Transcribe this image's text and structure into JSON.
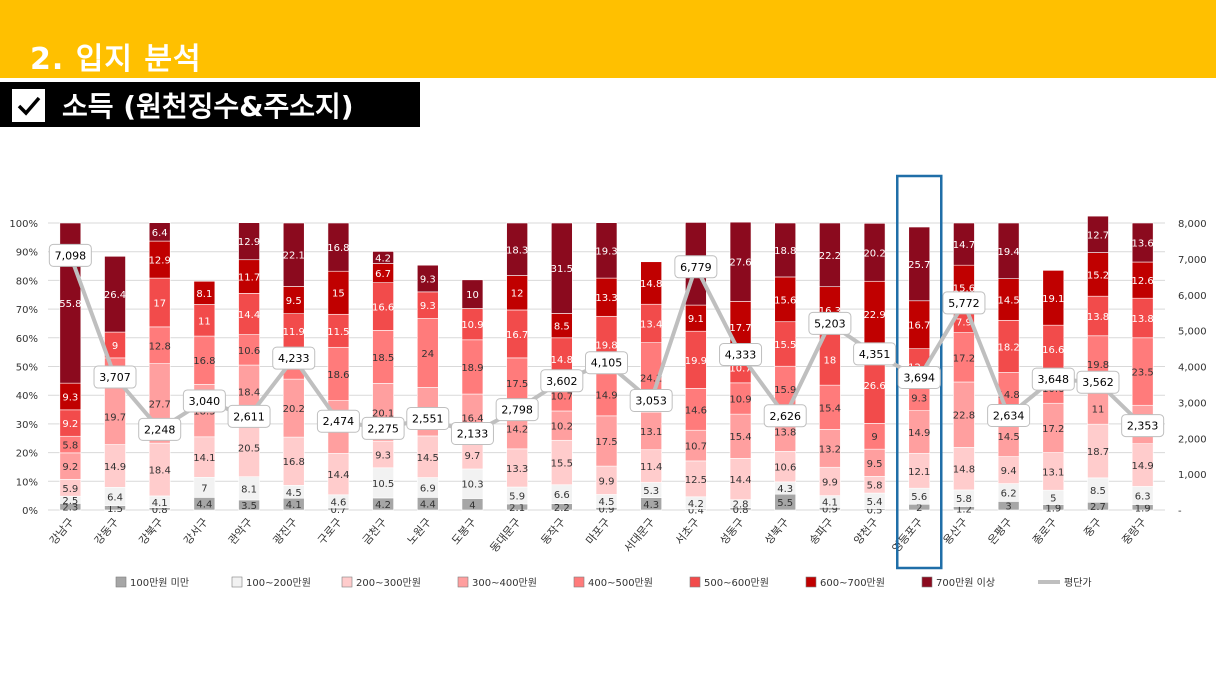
{
  "header": {
    "section_title": "2. 입지 분석",
    "subtitle": "소득 (원천징수&주소지)"
  },
  "colors": {
    "header_bar": "#FFC000",
    "subtitle_bar": "#000000",
    "highlight_box": "#1F6EA8",
    "series": [
      "#A6A6A6",
      "#F2F2F2",
      "#FFCCCC",
      "#FF9F9F",
      "#FF7B7B",
      "#F24B4B",
      "#C00000",
      "#8B0A1E"
    ],
    "avg_line": "#BFBFBF"
  },
  "highlight_category": "영등포구",
  "chart_data": {
    "type": "bar",
    "stacked_percent": true,
    "categories": [
      "강남구",
      "강동구",
      "강북구",
      "강서구",
      "관악구",
      "광진구",
      "구로구",
      "금천구",
      "노원구",
      "도봉구",
      "동대문구",
      "동작구",
      "마포구",
      "서대문구",
      "서초구",
      "성동구",
      "성북구",
      "송파구",
      "양천구",
      "영등포구",
      "용산구",
      "은평구",
      "종로구",
      "중구",
      "중랑구"
    ],
    "series": [
      {
        "name": "100만원 미만",
        "values": [
          2.3,
          1.5,
          0.8,
          4.4,
          3.5,
          4.1,
          0.7,
          4.2,
          4.4,
          4,
          2.1,
          2.2,
          0.9,
          4.3,
          0.4,
          0.8,
          5.5,
          0.9,
          0.5,
          2,
          1.2,
          3,
          1.9,
          2.7,
          1.9
        ]
      },
      {
        "name": "100~200만원",
        "values": [
          2.5,
          6.4,
          4.1,
          7,
          8.1,
          4.5,
          4.6,
          10.5,
          6.9,
          10.3,
          5.9,
          6.6,
          4.5,
          5.3,
          4.2,
          2.8,
          4.3,
          4.1,
          5.4,
          5.6,
          5.8,
          6.2,
          5,
          8.5,
          6.3
        ]
      },
      {
        "name": "200~300만원",
        "values": [
          5.9,
          14.9,
          18.4,
          14.1,
          20.5,
          16.8,
          14.4,
          9.3,
          14.5,
          9.7,
          13.3,
          15.5,
          9.9,
          11.4,
          12.5,
          14.4,
          10.6,
          9.9,
          5.8,
          12.1,
          14.8,
          9.4,
          13.1,
          18.7,
          14.9
        ]
      },
      {
        "name": "300~400만원",
        "values": [
          9.2,
          19.7,
          27.7,
          18.3,
          18.4,
          20.2,
          18.4,
          20.1,
          16.9,
          16.4,
          14.2,
          10.2,
          17.5,
          13.1,
          10.7,
          15.4,
          13.8,
          13.2,
          9.5,
          14.9,
          22.8,
          14.5,
          17.2,
          11,
          13.4
        ]
      },
      {
        "name": "400~500만원",
        "values": [
          5.8,
          10.5,
          12.8,
          16.8,
          10.6,
          10.9,
          18.6,
          18.5,
          24,
          18.9,
          17.5,
          10.7,
          14.9,
          24.2,
          14.6,
          10.9,
          15.9,
          15.4,
          9,
          9.3,
          17.2,
          14.8,
          10.6,
          19.8,
          23.5
        ]
      },
      {
        "name": "500~600만원",
        "values": [
          9.2,
          9,
          17,
          11,
          14.4,
          11.9,
          11.5,
          16.6,
          9.3,
          10.9,
          16.7,
          14.8,
          19.8,
          13.4,
          19.9,
          10.7,
          15.5,
          18,
          26.6,
          12.3,
          7.9,
          18.2,
          16.6,
          13.8,
          13.8
        ]
      },
      {
        "name": "600~700만원",
        "values": [
          9.3,
          0,
          12.9,
          8.1,
          11.7,
          9.5,
          15,
          6.7,
          0,
          0,
          12,
          8.5,
          13.3,
          14.8,
          9.1,
          17.7,
          15.6,
          16.3,
          22.9,
          16.7,
          15.6,
          14.5,
          19.1,
          15.2,
          12.6
        ]
      },
      {
        "name": "700만원 이상",
        "values": [
          55.8,
          26.4,
          6.4,
          0,
          12.9,
          22.1,
          16.8,
          4.2,
          9.3,
          10,
          18.3,
          31.5,
          19.3,
          0,
          28.8,
          27.6,
          18.8,
          22.2,
          20.2,
          25.7,
          14.7,
          19.4,
          0,
          12.7,
          13.6
        ]
      }
    ],
    "line": {
      "name": "평단가",
      "values": [
        7098,
        3707,
        2248,
        3040,
        2611,
        4233,
        2474,
        2275,
        2551,
        2133,
        2798,
        3602,
        4105,
        3053,
        6779,
        4333,
        2626,
        5203,
        4351,
        3694,
        5772,
        2634,
        3648,
        3562,
        2353
      ]
    },
    "y_left": {
      "ticks": [
        "0%",
        "10%",
        "20%",
        "30%",
        "40%",
        "50%",
        "60%",
        "70%",
        "80%",
        "90%",
        "100%"
      ],
      "range": [
        0,
        100
      ]
    },
    "y_right": {
      "ticks": [
        "-",
        "1,000",
        "2,000",
        "3,000",
        "4,000",
        "5,000",
        "6,000",
        "7,000",
        "8,000"
      ],
      "range": [
        0,
        8000
      ]
    },
    "legend_position": "bottom",
    "grid": true
  }
}
